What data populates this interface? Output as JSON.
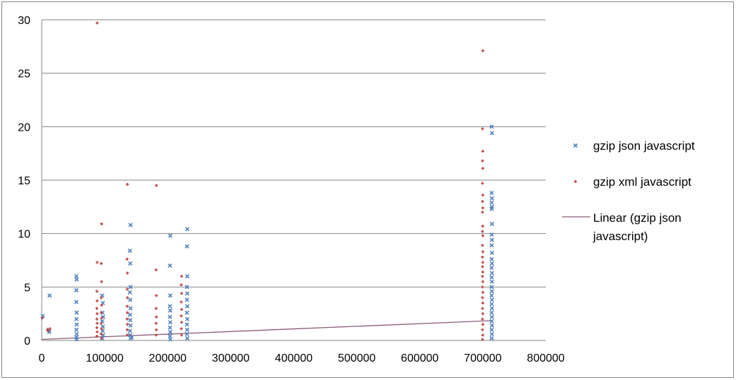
{
  "chart_data": {
    "type": "scatter",
    "title": "",
    "xlabel": "",
    "ylabel": "",
    "xlim": [
      0,
      800000
    ],
    "ylim": [
      0,
      30
    ],
    "xticks": [
      "0",
      "100000",
      "200000",
      "300000",
      "400000",
      "500000",
      "600000",
      "700000",
      "800000"
    ],
    "yticks": [
      "0",
      "5",
      "10",
      "15",
      "20",
      "25",
      "30"
    ],
    "grid": "horizontal",
    "legend_position": "right",
    "series": [
      {
        "name": "gzip json javascript",
        "marker": "x",
        "color": "#4F81BD",
        "points": [
          [
            1500,
            2.3
          ],
          [
            11000,
            1.0
          ],
          [
            12500,
            4.2
          ],
          [
            12000,
            0.8
          ],
          [
            55000,
            6.0
          ],
          [
            55500,
            5.7
          ],
          [
            55000,
            4.7
          ],
          [
            55000,
            3.6
          ],
          [
            55500,
            2.6
          ],
          [
            55000,
            2.0
          ],
          [
            55500,
            1.5
          ],
          [
            55000,
            1.0
          ],
          [
            55500,
            0.6
          ],
          [
            55000,
            0.3
          ],
          [
            55500,
            0.1
          ],
          [
            96000,
            4.2
          ],
          [
            97000,
            3.5
          ],
          [
            96500,
            2.6
          ],
          [
            97500,
            2.2
          ],
          [
            96000,
            1.8
          ],
          [
            97000,
            1.3
          ],
          [
            96500,
            0.9
          ],
          [
            97500,
            0.5
          ],
          [
            96000,
            0.2
          ],
          [
            141000,
            10.8
          ],
          [
            140000,
            8.4
          ],
          [
            140500,
            7.2
          ],
          [
            141000,
            5.0
          ],
          [
            140000,
            4.5
          ],
          [
            140500,
            3.8
          ],
          [
            141000,
            3.0
          ],
          [
            140000,
            2.4
          ],
          [
            140500,
            1.9
          ],
          [
            141000,
            1.4
          ],
          [
            140000,
            0.9
          ],
          [
            140500,
            0.5
          ],
          [
            141000,
            0.2
          ],
          [
            143000,
            0.3
          ],
          [
            204000,
            9.8
          ],
          [
            203500,
            7.0
          ],
          [
            204000,
            4.2
          ],
          [
            203500,
            3.2
          ],
          [
            204000,
            2.8
          ],
          [
            203500,
            2.2
          ],
          [
            204000,
            1.7
          ],
          [
            203500,
            1.2
          ],
          [
            204000,
            0.8
          ],
          [
            203500,
            0.4
          ],
          [
            204000,
            0.1
          ],
          [
            231000,
            10.4
          ],
          [
            230500,
            8.8
          ],
          [
            231000,
            6.0
          ],
          [
            230500,
            5.0
          ],
          [
            231000,
            4.4
          ],
          [
            230500,
            3.8
          ],
          [
            231000,
            3.2
          ],
          [
            230500,
            2.6
          ],
          [
            231000,
            2.0
          ],
          [
            230500,
            1.5
          ],
          [
            231000,
            1.0
          ],
          [
            230500,
            0.6
          ],
          [
            231000,
            0.2
          ],
          [
            714000,
            20.0
          ],
          [
            714500,
            19.4
          ],
          [
            714000,
            13.8
          ],
          [
            714500,
            13.3
          ],
          [
            714000,
            12.9
          ],
          [
            714500,
            12.5
          ],
          [
            714000,
            12.3
          ],
          [
            714500,
            10.9
          ],
          [
            714000,
            9.9
          ],
          [
            714500,
            9.4
          ],
          [
            714000,
            8.9
          ],
          [
            714500,
            8.2
          ],
          [
            714000,
            7.6
          ],
          [
            714500,
            7.2
          ],
          [
            714000,
            6.8
          ],
          [
            714500,
            6.3
          ],
          [
            714000,
            5.9
          ],
          [
            714500,
            5.5
          ],
          [
            714000,
            5.0
          ],
          [
            714500,
            4.6
          ],
          [
            714000,
            4.2
          ],
          [
            714500,
            3.8
          ],
          [
            714000,
            3.4
          ],
          [
            714500,
            3.0
          ],
          [
            714000,
            2.6
          ],
          [
            714500,
            2.2
          ],
          [
            714000,
            1.8
          ],
          [
            714500,
            1.4
          ],
          [
            714000,
            1.0
          ],
          [
            714500,
            0.6
          ],
          [
            714000,
            0.2
          ]
        ]
      },
      {
        "name": "gzip xml javascript",
        "marker": "+",
        "color": "#C0504D",
        "points": [
          [
            1000,
            2.1
          ],
          [
            9000,
            1.0
          ],
          [
            10000,
            0.9
          ],
          [
            13000,
            1.1
          ],
          [
            88000,
            29.7
          ],
          [
            88000,
            7.3
          ],
          [
            87500,
            4.6
          ],
          [
            88000,
            3.7
          ],
          [
            87500,
            3.0
          ],
          [
            88000,
            2.5
          ],
          [
            87500,
            2.0
          ],
          [
            88000,
            1.6
          ],
          [
            87500,
            1.2
          ],
          [
            88000,
            0.8
          ],
          [
            87500,
            0.4
          ],
          [
            95000,
            10.9
          ],
          [
            94500,
            7.2
          ],
          [
            95000,
            5.5
          ],
          [
            94500,
            4.0
          ],
          [
            95000,
            3.3
          ],
          [
            94500,
            2.6
          ],
          [
            95000,
            2.1
          ],
          [
            94500,
            1.6
          ],
          [
            95000,
            1.1
          ],
          [
            94500,
            0.6
          ],
          [
            95000,
            0.2
          ],
          [
            136000,
            14.6
          ],
          [
            135500,
            7.6
          ],
          [
            136000,
            6.3
          ],
          [
            135500,
            4.8
          ],
          [
            136000,
            4.0
          ],
          [
            135500,
            3.2
          ],
          [
            136000,
            2.6
          ],
          [
            135500,
            2.0
          ],
          [
            136000,
            1.5
          ],
          [
            135500,
            1.0
          ],
          [
            136000,
            0.5
          ],
          [
            182000,
            14.5
          ],
          [
            181500,
            6.6
          ],
          [
            182000,
            4.2
          ],
          [
            181500,
            3.0
          ],
          [
            182000,
            2.2
          ],
          [
            181500,
            1.6
          ],
          [
            182000,
            1.0
          ],
          [
            181500,
            0.5
          ],
          [
            222000,
            6.0
          ],
          [
            221500,
            5.2
          ],
          [
            222000,
            4.4
          ],
          [
            221500,
            3.6
          ],
          [
            222000,
            2.9
          ],
          [
            221500,
            2.3
          ],
          [
            222000,
            1.7
          ],
          [
            221500,
            1.1
          ],
          [
            222000,
            0.5
          ],
          [
            700000,
            27.1
          ],
          [
            699500,
            19.8
          ],
          [
            700000,
            17.7
          ],
          [
            699500,
            16.8
          ],
          [
            700000,
            16.1
          ],
          [
            699500,
            14.7
          ],
          [
            700000,
            13.6
          ],
          [
            699500,
            13.0
          ],
          [
            700000,
            12.4
          ],
          [
            699500,
            12.0
          ],
          [
            700000,
            10.7
          ],
          [
            699500,
            10.2
          ],
          [
            700000,
            9.8
          ],
          [
            699500,
            8.9
          ],
          [
            700000,
            8.3
          ],
          [
            699500,
            7.8
          ],
          [
            700000,
            7.3
          ],
          [
            699500,
            6.9
          ],
          [
            700000,
            6.4
          ],
          [
            699500,
            6.0
          ],
          [
            700000,
            5.5
          ],
          [
            699500,
            5.0
          ],
          [
            700000,
            4.5
          ],
          [
            699500,
            4.0
          ],
          [
            700000,
            3.5
          ],
          [
            699500,
            3.0
          ],
          [
            700000,
            2.5
          ],
          [
            699500,
            2.0
          ],
          [
            700000,
            1.5
          ],
          [
            699500,
            1.0
          ],
          [
            700000,
            0.5
          ],
          [
            699500,
            0.1
          ]
        ]
      },
      {
        "name": "Linear (gzip json javascript)",
        "type": "trendline",
        "color": "#8B5A7A",
        "points": [
          [
            0,
            0.1
          ],
          [
            714000,
            1.85
          ]
        ]
      }
    ],
    "legend": [
      {
        "label": "gzip json javascript",
        "marker": "x"
      },
      {
        "label": "gzip xml javascript",
        "marker": "+"
      },
      {
        "label_lines": [
          "Linear (gzip json",
          "javascript)"
        ],
        "marker": "line"
      }
    ]
  }
}
